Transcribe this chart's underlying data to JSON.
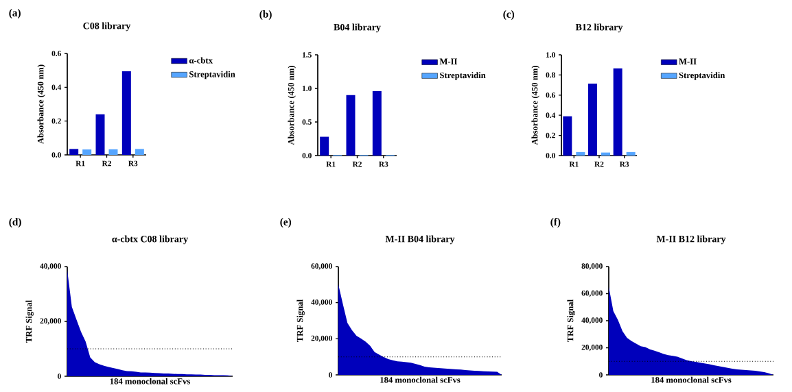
{
  "chart_data": [
    {
      "type": "bar",
      "title": "C08 library",
      "ylabel": "Absorbance (450 nm)",
      "annotations": [
        "(a)"
      ],
      "categories": [
        "R1",
        "R2",
        "R3"
      ],
      "legend": "right",
      "ylim": [
        0,
        0.6
      ],
      "yticks": [
        {
          "value": 0,
          "label": "0.0"
        },
        {
          "value": 0.2,
          "label": "0.2"
        },
        {
          "value": 0.4,
          "label": "0.4"
        },
        {
          "value": 0.6,
          "label": "0.6"
        }
      ],
      "series": [
        {
          "name": "α-cbtx",
          "color": "#0000bb",
          "values": [
            0.035,
            0.24,
            0.495
          ]
        },
        {
          "name": "Streptavidin",
          "color": "#55a5ff",
          "values": [
            0.032,
            0.033,
            0.035
          ]
        }
      ]
    },
    {
      "type": "bar",
      "title": "B04 library",
      "ylabel": "Absorbance (450 nm)",
      "annotations": [
        "(b)"
      ],
      "categories": [
        "R1",
        "R2",
        "R3"
      ],
      "legend": "right",
      "ylim": [
        0,
        1.5
      ],
      "yticks": [
        {
          "value": 0,
          "label": "0.0"
        },
        {
          "value": 0.5,
          "label": "0.5"
        },
        {
          "value": 1,
          "label": "1.0"
        },
        {
          "value": 1.5,
          "label": "1.5"
        }
      ],
      "series": [
        {
          "name": "M-II",
          "color": "#0000bb",
          "values": [
            0.28,
            0.9,
            0.96
          ]
        },
        {
          "name": "Streptavidin",
          "color": "#55a5ff",
          "values": [
            0.01,
            0.01,
            0.01
          ]
        }
      ]
    },
    {
      "type": "bar",
      "title": "B12 library",
      "ylabel": "Absorbance (450 nm)",
      "annotations": [
        "(c)"
      ],
      "categories": [
        "R1",
        "R2",
        "R3"
      ],
      "legend": "right",
      "ylim": [
        0,
        1.0
      ],
      "yticks": [
        {
          "value": 0,
          "label": "0.0"
        },
        {
          "value": 0.2,
          "label": "0.2"
        },
        {
          "value": 0.4,
          "label": "0.4"
        },
        {
          "value": 0.6,
          "label": "0.6"
        },
        {
          "value": 0.8,
          "label": "0.8"
        },
        {
          "value": 1,
          "label": "1.0"
        }
      ],
      "series": [
        {
          "name": "M-II",
          "color": "#0000bb",
          "values": [
            0.39,
            0.715,
            0.865
          ]
        },
        {
          "name": "Streptavidin",
          "color": "#55a5ff",
          "values": [
            0.035,
            0.03,
            0.035
          ]
        }
      ]
    },
    {
      "type": "area",
      "title": "α-cbtx C08 library",
      "xlabel": "184 monoclonal scFvs",
      "ylabel": "TRF Signal",
      "annotations": [
        "(d)"
      ],
      "tick_labels": "y",
      "categories": [
        null,
        null,
        null,
        null,
        null,
        null,
        null,
        null,
        null,
        null,
        null,
        null,
        null,
        null,
        null,
        null,
        null,
        null,
        null,
        null,
        null,
        null,
        null,
        null,
        null,
        null,
        null,
        null,
        null,
        null,
        null,
        null,
        null,
        null,
        null,
        null,
        null
      ],
      "ylim": [
        0,
        40000
      ],
      "yticks": [
        {
          "value": 0,
          "label": "0"
        },
        {
          "value": 20000,
          "label": "20,000"
        },
        {
          "value": 40000,
          "label": "40,000"
        }
      ],
      "ref_lines": [
        {
          "axis": "y",
          "value": 10000,
          "line_style": "dotted"
        }
      ],
      "series": [
        {
          "color": "#0000bb",
          "values": [
            38700,
            25300,
            20700,
            16200,
            12600,
            6900,
            5100,
            4400,
            3800,
            3400,
            3000,
            2600,
            2200,
            1900,
            1800,
            1600,
            1400,
            1400,
            1300,
            1200,
            1100,
            1000,
            1000,
            900,
            800,
            800,
            700,
            700,
            600,
            600,
            500,
            500,
            400,
            400,
            400,
            300,
            0
          ]
        }
      ]
    },
    {
      "type": "area",
      "title": "M-II B04 library",
      "xlabel": "184 monoclonal scFvs",
      "ylabel": "TRF Signal",
      "annotations": [
        "(e)"
      ],
      "tick_labels": "y",
      "categories": [
        null,
        null,
        null,
        null,
        null,
        null,
        null,
        null,
        null,
        null,
        null,
        null,
        null,
        null,
        null,
        null,
        null,
        null,
        null,
        null,
        null,
        null,
        null,
        null,
        null,
        null,
        null,
        null,
        null,
        null,
        null,
        null,
        null,
        null,
        null,
        null,
        null
      ],
      "ylim": [
        0,
        60000
      ],
      "yticks": [
        {
          "value": 0,
          "label": "0"
        },
        {
          "value": 20000,
          "label": "20,000"
        },
        {
          "value": 40000,
          "label": "40,000"
        },
        {
          "value": 60000,
          "label": "60,000"
        }
      ],
      "ref_lines": [
        {
          "axis": "y",
          "value": 10000,
          "line_style": "dotted"
        }
      ],
      "series": [
        {
          "color": "#0000bb",
          "values": [
            50100,
            39200,
            28800,
            24800,
            21600,
            20100,
            18400,
            16100,
            12600,
            11200,
            9900,
            8700,
            8100,
            7500,
            7300,
            7000,
            6700,
            6100,
            5400,
            4600,
            4200,
            4000,
            3800,
            3600,
            3400,
            3200,
            3000,
            2900,
            2700,
            2500,
            2300,
            2200,
            2000,
            1900,
            1800,
            1700,
            0
          ]
        }
      ]
    },
    {
      "type": "area",
      "title": "M-II B12 library",
      "xlabel": "184 monoclonal scFvs",
      "ylabel": "TRF Signal",
      "annotations": [
        "(f)"
      ],
      "tick_labels": "y",
      "categories": [
        null,
        null,
        null,
        null,
        null,
        null,
        null,
        null,
        null,
        null,
        null,
        null,
        null,
        null,
        null,
        null,
        null,
        null,
        null,
        null,
        null,
        null,
        null,
        null,
        null,
        null,
        null,
        null,
        null,
        null,
        null,
        null,
        null,
        null,
        null,
        null,
        null
      ],
      "ylim": [
        0,
        80000
      ],
      "yticks": [
        {
          "value": 0,
          "label": "0"
        },
        {
          "value": 20000,
          "label": "20,000"
        },
        {
          "value": 40000,
          "label": "40,000"
        },
        {
          "value": 60000,
          "label": "60,000"
        },
        {
          "value": 80000,
          "label": "80,000"
        }
      ],
      "ref_lines": [
        {
          "axis": "y",
          "value": 10000,
          "line_style": "dotted"
        }
      ],
      "series": [
        {
          "color": "#0000bb",
          "values": [
            65100,
            47100,
            40600,
            32300,
            27400,
            25000,
            23100,
            21200,
            20500,
            18900,
            17900,
            16700,
            15400,
            14600,
            14000,
            13400,
            12200,
            10900,
            10100,
            9600,
            9000,
            8400,
            7800,
            7100,
            6400,
            5800,
            5200,
            4500,
            4100,
            3800,
            3500,
            3300,
            3000,
            2500,
            2000,
            1200,
            0
          ]
        }
      ]
    }
  ]
}
